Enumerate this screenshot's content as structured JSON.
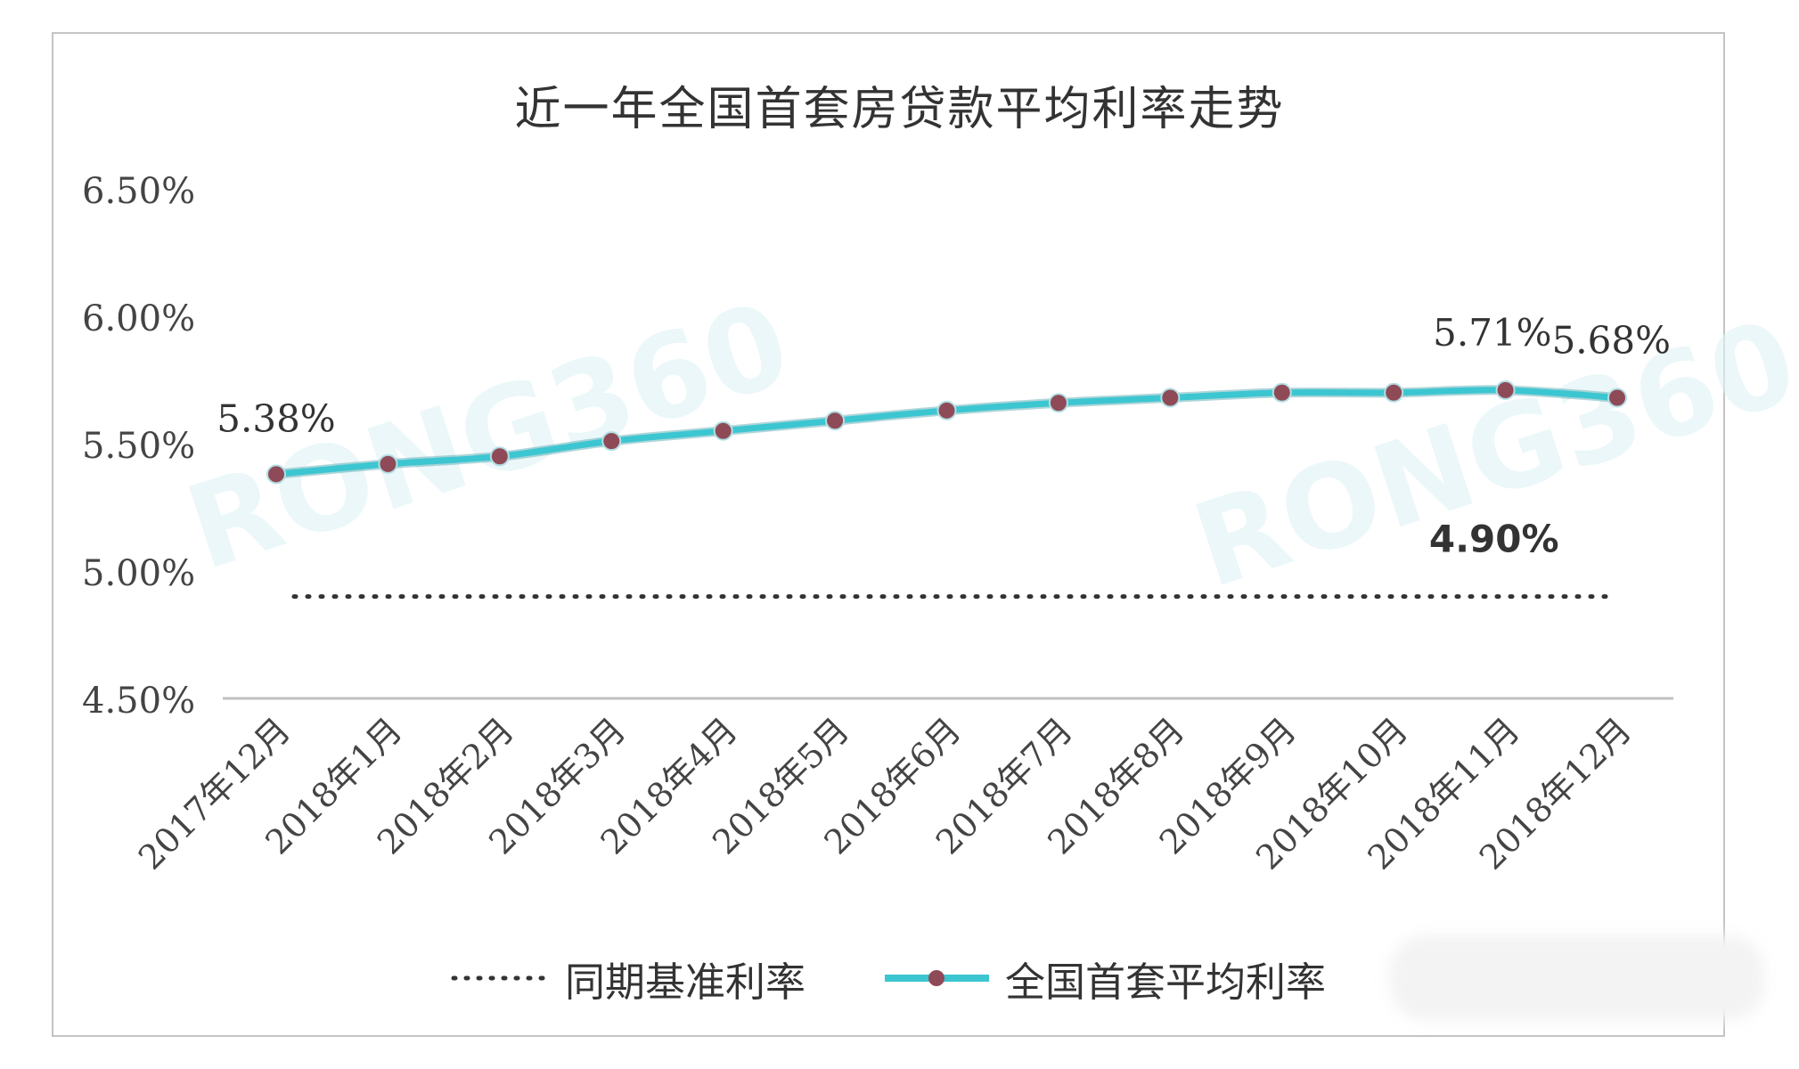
{
  "chart_data": {
    "type": "line",
    "title": "近一年全国首套房贷款平均利率走势",
    "categories": [
      "2017年12月",
      "2018年1月",
      "2018年2月",
      "2018年3月",
      "2018年4月",
      "2018年5月",
      "2018年6月",
      "2018年7月",
      "2018年8月",
      "2018年9月",
      "2018年10月",
      "2018年11月",
      "2018年12月"
    ],
    "series": [
      {
        "name": "全国首套平均利率",
        "style": "solid line with markers",
        "color": "#3cc6d1",
        "marker_color": "#8e4b57",
        "values": [
          5.38,
          5.42,
          5.45,
          5.51,
          5.55,
          5.59,
          5.63,
          5.66,
          5.68,
          5.7,
          5.7,
          5.71,
          5.68
        ]
      },
      {
        "name": "同期基准利率",
        "style": "dotted line",
        "color": "#333333",
        "values": [
          4.9,
          4.9,
          4.9,
          4.9,
          4.9,
          4.9,
          4.9,
          4.9,
          4.9,
          4.9,
          4.9,
          4.9,
          4.9
        ]
      }
    ],
    "y_ticks": [
      "6.50%",
      "6.00%",
      "5.50%",
      "5.00%",
      "4.50%"
    ],
    "ylim": [
      4.5,
      6.5
    ],
    "grid": false,
    "legend_position": "bottom",
    "data_labels": [
      {
        "text": "5.38%",
        "series": 0,
        "index": 0
      },
      {
        "text": "5.71%",
        "series": 0,
        "index": 11
      },
      {
        "text": "5.68%",
        "series": 0,
        "index": 12
      },
      {
        "text": "4.90%",
        "series": 1,
        "index": 11
      }
    ],
    "watermark": "RONG360"
  }
}
